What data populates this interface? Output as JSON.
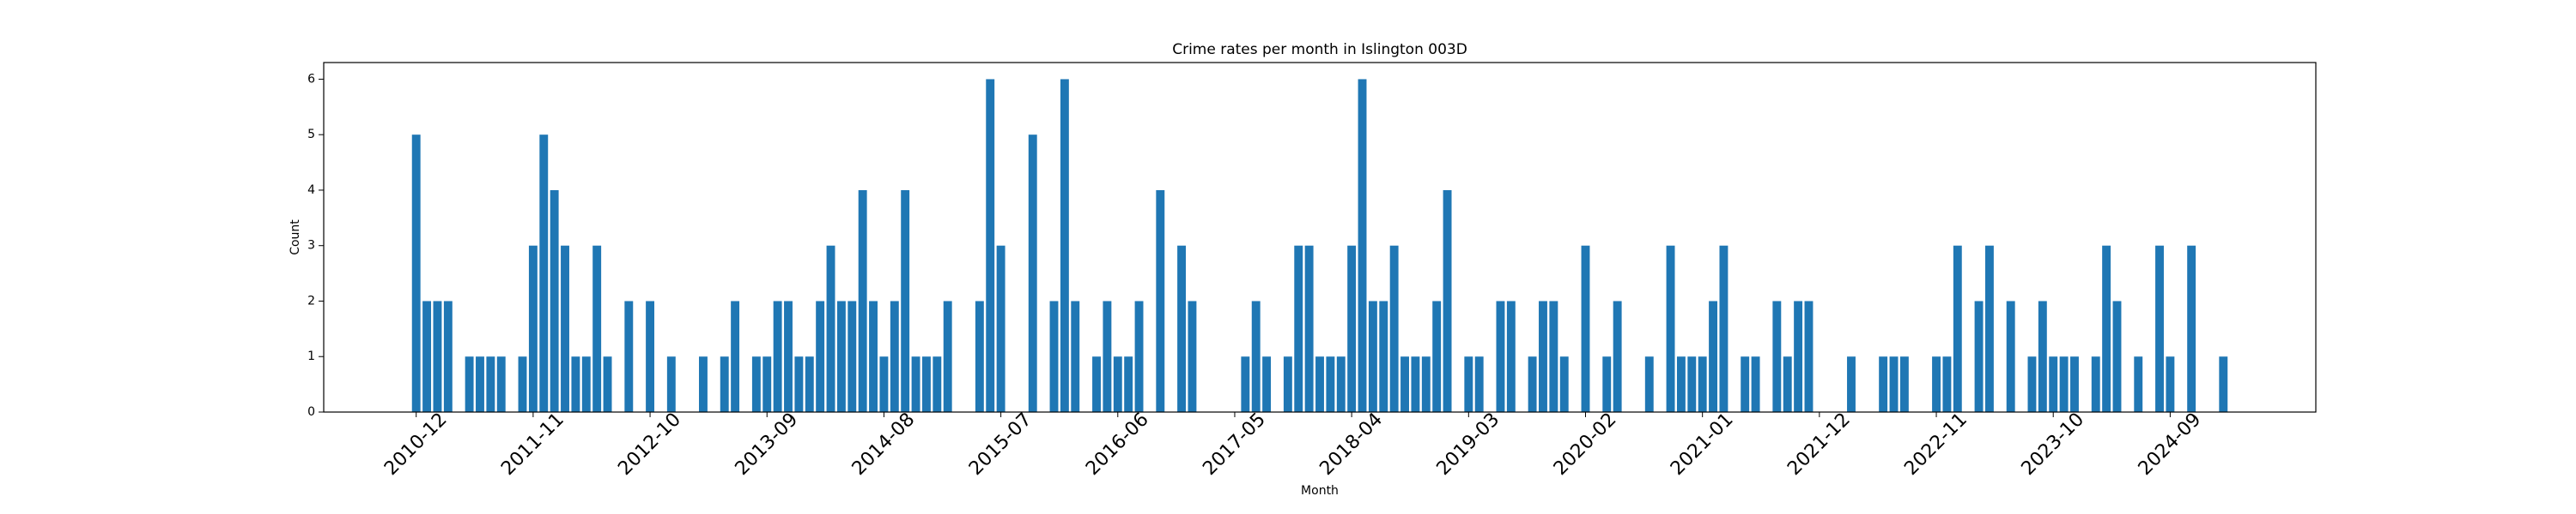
{
  "chart_data": {
    "type": "bar",
    "title": "Crime rates per month in Islington 003D",
    "x_label": "Month",
    "y_label": "Count",
    "color": "#1f77b4",
    "categories": [
      "2010-12",
      null,
      null,
      null,
      null,
      null,
      null,
      null,
      null,
      null,
      null,
      "2011-11",
      null,
      null,
      null,
      null,
      null,
      null,
      null,
      null,
      null,
      null,
      "2012-10",
      null,
      null,
      null,
      null,
      null,
      null,
      null,
      null,
      null,
      null,
      "2013-09",
      null,
      null,
      null,
      null,
      null,
      null,
      null,
      null,
      null,
      null,
      "2014-08",
      null,
      null,
      null,
      null,
      null,
      null,
      null,
      null,
      null,
      null,
      "2015-07",
      null,
      null,
      null,
      null,
      null,
      null,
      null,
      null,
      null,
      null,
      "2016-06",
      null,
      null,
      null,
      null,
      null,
      null,
      null,
      null,
      null,
      null,
      "2017-05",
      null,
      null,
      null,
      null,
      null,
      null,
      null,
      null,
      null,
      null,
      "2018-04",
      null,
      null,
      null,
      null,
      null,
      null,
      null,
      null,
      null,
      null,
      "2019-03",
      null,
      null,
      null,
      null,
      null,
      null,
      null,
      null,
      null,
      null,
      "2020-02",
      null,
      null,
      null,
      null,
      null,
      null,
      null,
      null,
      null,
      null,
      "2021-01",
      null,
      null,
      null,
      null,
      null,
      null,
      null,
      null,
      null,
      null,
      "2021-12",
      null,
      null,
      null,
      null,
      null,
      null,
      null,
      null,
      null,
      null,
      "2022-11",
      null,
      null,
      null,
      null,
      null,
      null,
      null,
      null,
      null,
      null,
      "2023-10",
      null,
      null,
      null,
      null,
      null,
      null,
      null,
      null,
      null,
      null,
      "2024-09",
      null,
      null,
      null,
      null,
      null
    ],
    "values": [
      5,
      2,
      2,
      2,
      0,
      1,
      1,
      1,
      1,
      0,
      1,
      3,
      5,
      4,
      3,
      1,
      1,
      3,
      1,
      0,
      2,
      0,
      2,
      0,
      1,
      0,
      0,
      1,
      0,
      1,
      2,
      0,
      1,
      1,
      2,
      2,
      1,
      1,
      2,
      3,
      2,
      2,
      4,
      2,
      1,
      2,
      4,
      1,
      1,
      1,
      2,
      0,
      0,
      2,
      6,
      3,
      0,
      0,
      5,
      0,
      2,
      6,
      2,
      0,
      1,
      2,
      1,
      1,
      2,
      0,
      4,
      0,
      3,
      2,
      0,
      0,
      0,
      0,
      1,
      2,
      1,
      0,
      1,
      3,
      3,
      1,
      1,
      1,
      3,
      6,
      2,
      2,
      3,
      1,
      1,
      1,
      2,
      4,
      0,
      1,
      1,
      0,
      2,
      2,
      0,
      1,
      2,
      2,
      1,
      0,
      3,
      0,
      1,
      2,
      0,
      0,
      1,
      0,
      3,
      1,
      1,
      1,
      2,
      3,
      0,
      1,
      1,
      0,
      2,
      1,
      2,
      2,
      0,
      0,
      0,
      1,
      0,
      0,
      1,
      1,
      1,
      0,
      0,
      1,
      1,
      3,
      0,
      2,
      3,
      0,
      2,
      0,
      1,
      2,
      1,
      1,
      1,
      0,
      1,
      3,
      2,
      0,
      1,
      0,
      3,
      1,
      0,
      3,
      0,
      0,
      1
    ],
    "ylim": [
      0,
      6.3
    ],
    "yticks": [
      0,
      1,
      2,
      3,
      4,
      5,
      6
    ]
  }
}
